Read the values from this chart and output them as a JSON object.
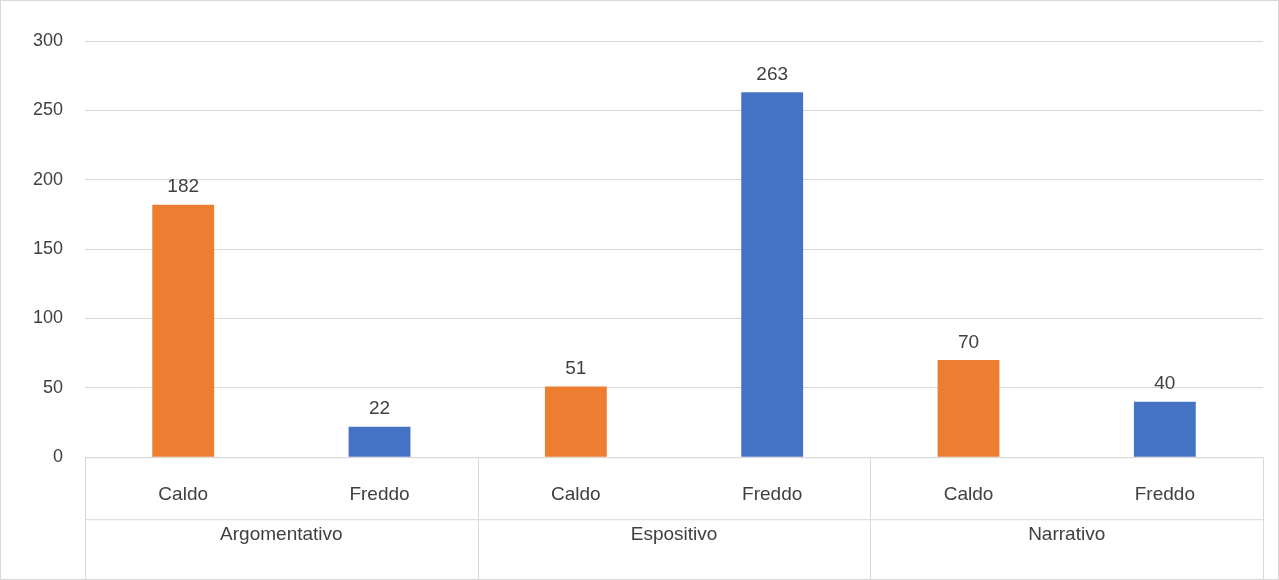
{
  "chart_data": {
    "type": "bar",
    "categories": [
      "Caldo",
      "Freddo",
      "Caldo",
      "Freddo",
      "Caldo",
      "Freddo"
    ],
    "values": [
      182,
      22,
      51,
      263,
      70,
      40
    ],
    "colors": [
      "#ed7d31",
      "#4472c4",
      "#ed7d31",
      "#4472c4",
      "#ed7d31",
      "#4472c4"
    ],
    "ylim": [
      0,
      300
    ],
    "yticks": [
      0,
      50,
      100,
      150,
      200,
      250,
      300
    ],
    "grid": "y",
    "data_labels": true,
    "annotations": [
      "Argomentativo",
      "Espositivo",
      "Narrativo"
    ]
  }
}
